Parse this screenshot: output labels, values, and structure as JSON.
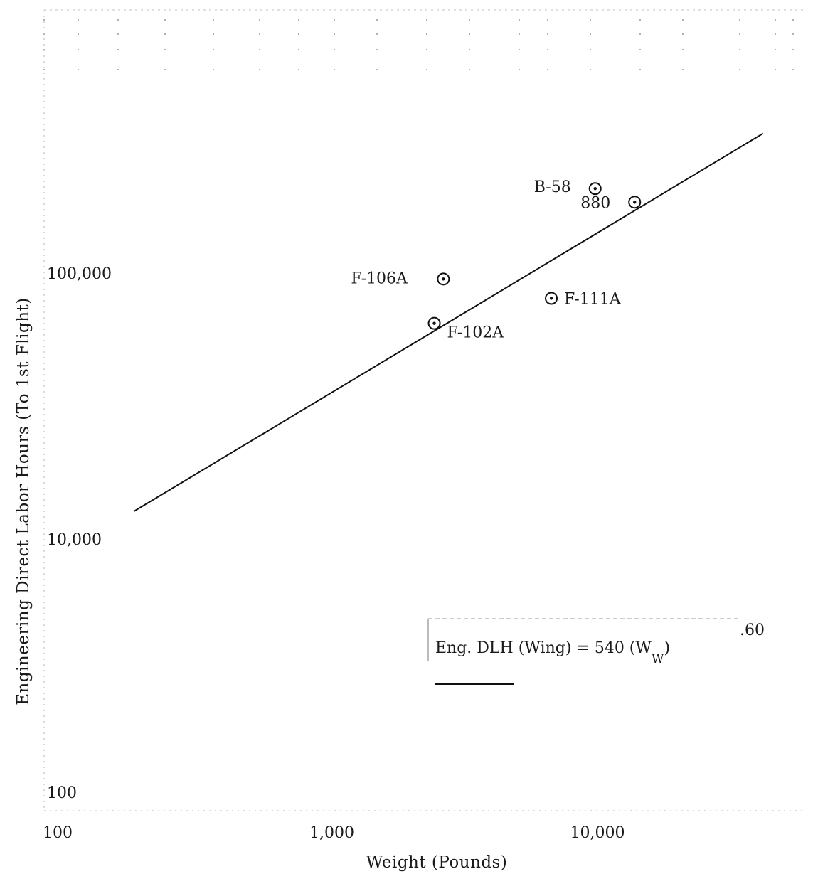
{
  "chart_data": {
    "type": "scatter",
    "xlabel": "Weight (Pounds)",
    "ylabel": "Engineering Direct Labor Hours (To 1st Flight)",
    "x_scale": "log",
    "y_scale": "log",
    "x_ticks": [
      {
        "value": 100,
        "label": "100"
      },
      {
        "value": 1000,
        "label": "1,000"
      },
      {
        "value": 10000,
        "label": "10,000"
      }
    ],
    "y_ticks": [
      {
        "value": 100,
        "label": "100"
      },
      {
        "value": 10000,
        "label": "10,000"
      },
      {
        "value": 100000,
        "label": "100,000"
      }
    ],
    "points": [
      {
        "label": "B-58",
        "x": 9800,
        "y": 199000
      },
      {
        "label": "880",
        "x": 13800,
        "y": 177000
      },
      {
        "label": "F-106A",
        "x": 2630,
        "y": 91000
      },
      {
        "label": "F-111A",
        "x": 6700,
        "y": 77000
      },
      {
        "label": "F-102A",
        "x": 2430,
        "y": 62000
      }
    ],
    "fit_line": {
      "equation_prefix": "Eng. DLH (Wing) = 540 (W",
      "equation_subscript": "W",
      "equation_suffix": ")",
      "equation_exponent": ".60",
      "x_start": 180,
      "x_end": 42000
    },
    "grid": false,
    "legend_position": "bottom-right"
  }
}
